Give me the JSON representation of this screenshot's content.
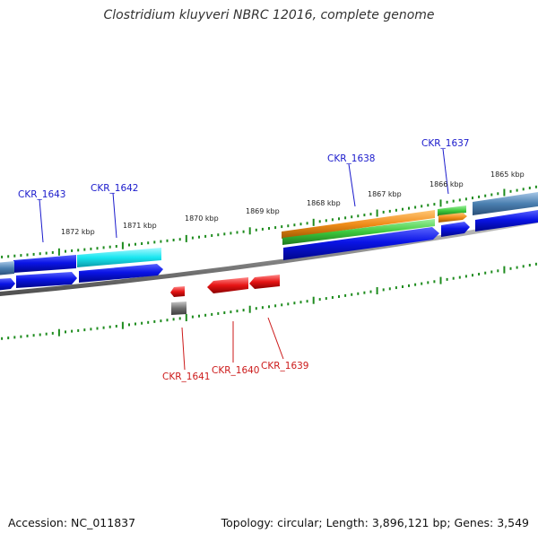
{
  "title": "Clostridium kluyveri NBRC 12016, complete genome",
  "footer": {
    "accession": "Accession: NC_011837",
    "summary": "Topology: circular; Length: 3,896,121 bp; Genes: 3,549"
  },
  "ruler_ticks": [
    "1865 kbp",
    "1866 kbp",
    "1867 kbp",
    "1868 kbp",
    "1869 kbp",
    "1870 kbp",
    "1871 kbp",
    "1872 kbp"
  ],
  "gene_labels": [
    {
      "text": "CKR_1643",
      "strand": "forward"
    },
    {
      "text": "CKR_1642",
      "strand": "forward"
    },
    {
      "text": "CKR_1638",
      "strand": "forward"
    },
    {
      "text": "CKR_1637",
      "strand": "forward"
    },
    {
      "text": "CKR_1641",
      "strand": "reverse"
    },
    {
      "text": "CKR_1640",
      "strand": "reverse"
    },
    {
      "text": "CKR_1639",
      "strand": "reverse"
    }
  ],
  "colors": {
    "forward_label": "#1a1acc",
    "reverse_label": "#cc1a1a",
    "cds_blue": "#0a14e6",
    "cds_cyan": "#19e6f0",
    "cds_steel": "#4a7fb0",
    "cds_orange": "#f08c19",
    "cds_green": "#3cc83c",
    "cds_red": "#e61414",
    "cds_gray": "#707070",
    "backbone": "#888888",
    "tick_green": "#1e8c1e"
  }
}
